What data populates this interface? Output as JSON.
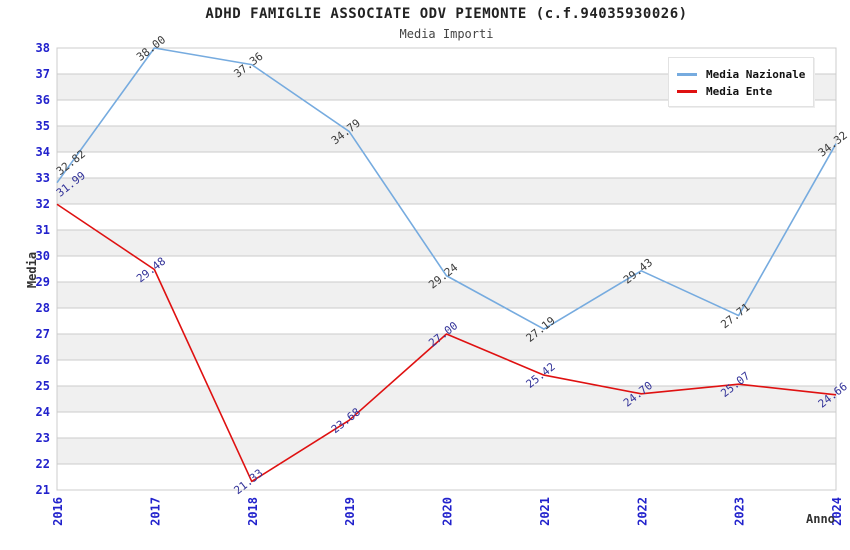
{
  "chart": {
    "title": "ADHD FAMIGLIE ASSOCIATE ODV PIEMONTE (c.f.94035930026)",
    "subtitle": "Media Importi"
  },
  "chart_data": {
    "type": "line",
    "title": "ADHD FAMIGLIE ASSOCIATE ODV PIEMONTE (c.f.94035930026)",
    "subtitle": "Media Importi",
    "xlabel": "Anno",
    "ylabel": "Media",
    "categories": [
      "2016",
      "2017",
      "2018",
      "2019",
      "2020",
      "2021",
      "2022",
      "2023",
      "2024"
    ],
    "series": [
      {
        "name": "Media Nazionale",
        "color": "#76ABDF",
        "label_color": "#3a3a3a",
        "values": [
          32.82,
          38.0,
          37.36,
          34.79,
          29.24,
          27.19,
          29.43,
          27.71,
          34.32
        ]
      },
      {
        "name": "Media Ente",
        "color": "#DF1111",
        "label_color": "#333399",
        "values": [
          31.99,
          29.48,
          21.33,
          23.68,
          27.0,
          25.42,
          24.7,
          25.07,
          24.66
        ]
      }
    ],
    "ylim": [
      21,
      38
    ],
    "ytick_step": 1,
    "grid": true,
    "legend_position": "top-right",
    "colors": {
      "tick_label": "#2222CC",
      "grid_line": "#cbcbcb",
      "band_fill": "#f0f0f0",
      "plot_border": "#cccccc",
      "title_text": "#222222",
      "axis_title_text": "#333333"
    }
  }
}
